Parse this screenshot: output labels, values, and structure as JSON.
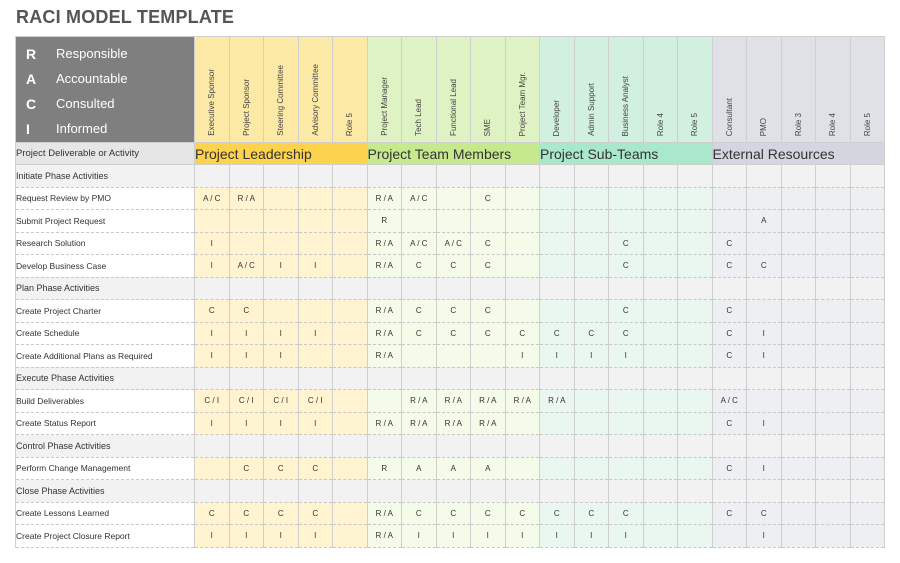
{
  "title": "RACI MODEL TEMPLATE",
  "legend": [
    {
      "letter": "R",
      "label": "Responsible"
    },
    {
      "letter": "A",
      "label": "Accountable"
    },
    {
      "letter": "C",
      "label": "Consulted"
    },
    {
      "letter": "I",
      "label": "Informed"
    }
  ],
  "activity_header": "Project Deliverable or Activity",
  "groups": [
    {
      "name": "Project Leadership",
      "roles": [
        "Executive Sponsor",
        "Project Sponsor",
        "Steering Committee",
        "Advisory Committee",
        "Role 5"
      ]
    },
    {
      "name": "Project Team Members",
      "roles": [
        "Project Manager",
        "Tech Lead",
        "Functional Lead",
        "SME",
        "Project Team Mgr."
      ]
    },
    {
      "name": "Project Sub-Teams",
      "roles": [
        "Developer",
        "Admin Support",
        "Business Analyst",
        "Role 4",
        "Role 5"
      ]
    },
    {
      "name": "External Resources",
      "roles": [
        "Consultant",
        "PMO",
        "Role 3",
        "Role 4",
        "Role 5"
      ]
    }
  ],
  "rows": [
    {
      "type": "phase",
      "label": "Initiate Phase Activities"
    },
    {
      "type": "activity",
      "label": "Request Review by PMO",
      "cells": [
        "A / C",
        "R / A",
        "",
        "",
        "",
        "R / A",
        "A / C",
        "",
        "C",
        "",
        "",
        "",
        "",
        "",
        "",
        "",
        "",
        "",
        "",
        ""
      ]
    },
    {
      "type": "activity",
      "label": "Submit Project Request",
      "cells": [
        "",
        "",
        "",
        "",
        "",
        "R",
        "",
        "",
        "",
        "",
        "",
        "",
        "",
        "",
        "",
        "",
        "A",
        "",
        "",
        ""
      ]
    },
    {
      "type": "activity",
      "label": "Research Solution",
      "cells": [
        "I",
        "",
        "",
        "",
        "",
        "R / A",
        "A / C",
        "A / C",
        "C",
        "",
        "",
        "",
        "C",
        "",
        "",
        "C",
        "",
        "",
        "",
        ""
      ]
    },
    {
      "type": "activity",
      "label": "Develop Business Case",
      "cells": [
        "I",
        "A / C",
        "I",
        "I",
        "",
        "R / A",
        "C",
        "C",
        "C",
        "",
        "",
        "",
        "C",
        "",
        "",
        "C",
        "C",
        "",
        "",
        ""
      ]
    },
    {
      "type": "phase",
      "label": "Plan Phase Activities"
    },
    {
      "type": "activity",
      "label": "Create Project Charter",
      "cells": [
        "C",
        "C",
        "",
        "",
        "",
        "R / A",
        "C",
        "C",
        "C",
        "",
        "",
        "",
        "C",
        "",
        "",
        "C",
        "",
        "",
        "",
        ""
      ]
    },
    {
      "type": "activity",
      "label": "Create Schedule",
      "cells": [
        "I",
        "I",
        "I",
        "I",
        "",
        "R / A",
        "C",
        "C",
        "C",
        "C",
        "C",
        "C",
        "C",
        "",
        "",
        "C",
        "I",
        "",
        "",
        ""
      ]
    },
    {
      "type": "activity",
      "label": "Create Additional Plans as Required",
      "cells": [
        "I",
        "I",
        "I",
        "",
        "",
        "R / A",
        "",
        "",
        "",
        "I",
        "I",
        "I",
        "I",
        "",
        "",
        "C",
        "I",
        "",
        "",
        ""
      ]
    },
    {
      "type": "phase",
      "label": "Execute Phase Activities"
    },
    {
      "type": "activity",
      "label": "Build Deliverables",
      "cells": [
        "C / I",
        "C / I",
        "C / I",
        "C / I",
        "",
        "",
        "R / A",
        "R / A",
        "R / A",
        "R / A",
        "R / A",
        "",
        "",
        "",
        "",
        "A / C",
        "",
        "",
        "",
        ""
      ]
    },
    {
      "type": "activity",
      "label": "Create Status Report",
      "cells": [
        "I",
        "I",
        "I",
        "I",
        "",
        "R / A",
        "R / A",
        "R / A",
        "R / A",
        "",
        "",
        "",
        "",
        "",
        "",
        "C",
        "I",
        "",
        "",
        ""
      ]
    },
    {
      "type": "phase",
      "label": "Control Phase Activities"
    },
    {
      "type": "activity",
      "label": "Perform Change Management",
      "cells": [
        "",
        "C",
        "C",
        "C",
        "",
        "R",
        "A",
        "A",
        "A",
        "",
        "",
        "",
        "",
        "",
        "",
        "C",
        "I",
        "",
        "",
        ""
      ]
    },
    {
      "type": "phase",
      "label": "Close Phase Activities"
    },
    {
      "type": "activity",
      "label": "Create Lessons Learned",
      "cells": [
        "C",
        "C",
        "C",
        "C",
        "",
        "R / A",
        "C",
        "C",
        "C",
        "C",
        "C",
        "C",
        "C",
        "",
        "",
        "C",
        "C",
        "",
        "",
        ""
      ]
    },
    {
      "type": "activity",
      "label": "Create Project Closure Report",
      "cells": [
        "I",
        "I",
        "I",
        "I",
        "",
        "R / A",
        "I",
        "I",
        "I",
        "I",
        "I",
        "I",
        "I",
        "",
        "",
        "",
        "I",
        "",
        "",
        ""
      ]
    }
  ]
}
